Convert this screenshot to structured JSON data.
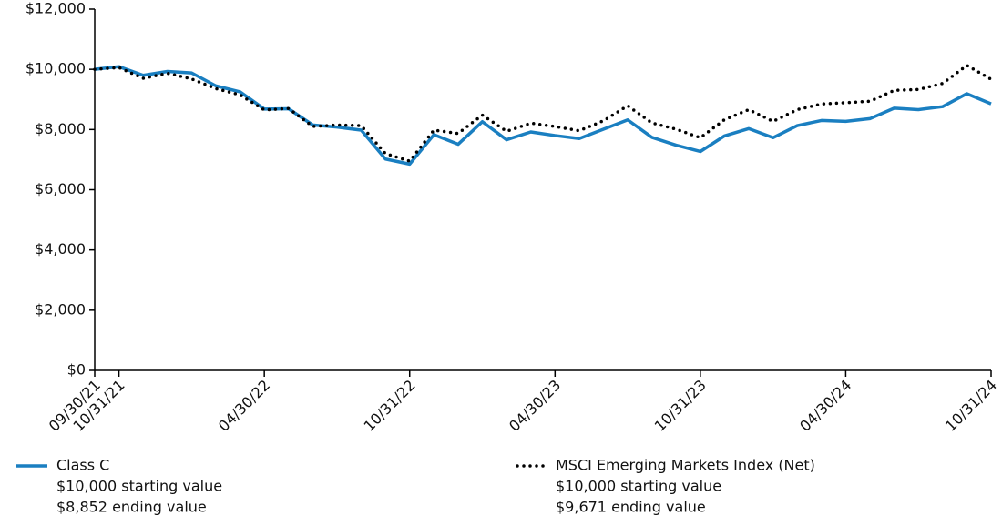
{
  "chart_data": {
    "type": "line",
    "categories": [
      "09/30/21",
      "10/31/21",
      null,
      null,
      null,
      null,
      null,
      "04/30/22",
      null,
      null,
      null,
      null,
      null,
      "10/31/22",
      null,
      null,
      null,
      null,
      null,
      "04/30/23",
      null,
      null,
      null,
      null,
      null,
      "10/31/23",
      null,
      null,
      null,
      null,
      null,
      "04/30/24",
      null,
      null,
      null,
      null,
      null,
      "10/31/24"
    ],
    "series": [
      {
        "name": "Class C",
        "color": "#1a7fc1",
        "style": "solid",
        "start_label": "$10,000 starting value",
        "end_label": "$8,852 ending value",
        "values": [
          10000,
          10090,
          9800,
          9930,
          9880,
          9450,
          9250,
          8680,
          8690,
          8150,
          8080,
          7980,
          7020,
          6850,
          7830,
          7510,
          8260,
          7660,
          7920,
          7800,
          7700,
          8010,
          8320,
          7740,
          7480,
          7270,
          7790,
          8030,
          7730,
          8130,
          8300,
          8270,
          8360,
          8710,
          8660,
          8760,
          9190,
          8852
        ]
      },
      {
        "name": "MSCI Emerging Markets Index (Net)",
        "color": "#000000",
        "style": "dotted",
        "start_label": "$10,000 starting value",
        "end_label": "$9,671 ending value",
        "values": [
          10000,
          10060,
          9700,
          9870,
          9680,
          9360,
          9150,
          8650,
          8700,
          8100,
          8150,
          8130,
          7200,
          6950,
          7980,
          7870,
          8480,
          7940,
          8210,
          8100,
          7960,
          8290,
          8790,
          8220,
          8010,
          7730,
          8330,
          8660,
          8270,
          8660,
          8850,
          8890,
          8940,
          9300,
          9330,
          9530,
          10130,
          9671
        ]
      }
    ],
    "ylim": [
      0,
      12000
    ],
    "yticks": [
      {
        "value": 0,
        "label": "$0"
      },
      {
        "value": 2000,
        "label": "$2,000"
      },
      {
        "value": 4000,
        "label": "$4,000"
      },
      {
        "value": 6000,
        "label": "$6,000"
      },
      {
        "value": 8000,
        "label": "$8,000"
      },
      {
        "value": 10000,
        "label": "$10,000"
      },
      {
        "value": 12000,
        "label": "$12,000"
      }
    ],
    "grid": false
  }
}
